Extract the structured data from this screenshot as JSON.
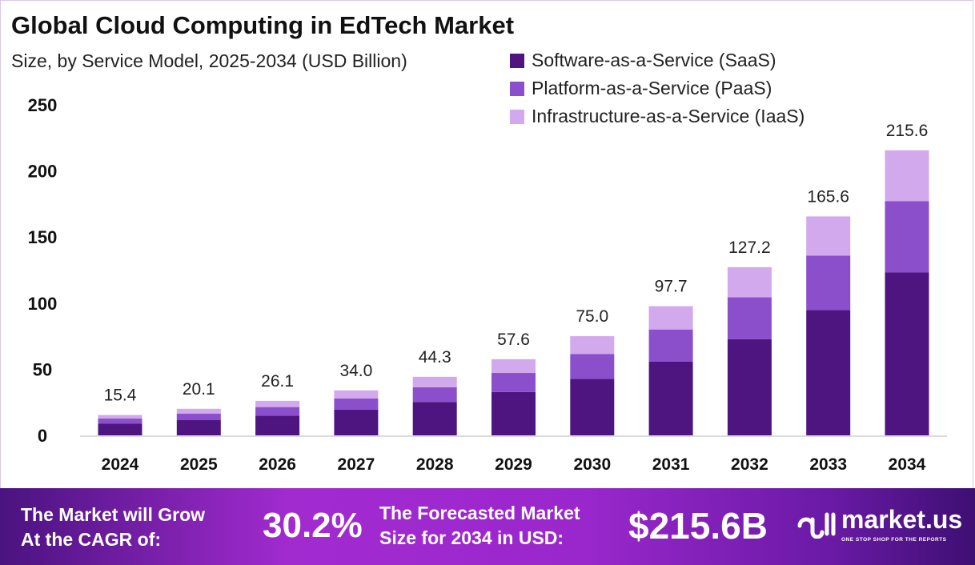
{
  "chart_data": {
    "type": "bar",
    "stacked": true,
    "title": "Global Cloud Computing in EdTech Market",
    "subtitle": "Size, by Service Model, 2025-2034 (USD Billion)",
    "categories": [
      "2024",
      "2025",
      "2026",
      "2027",
      "2028",
      "2029",
      "2030",
      "2031",
      "2032",
      "2033",
      "2034"
    ],
    "series": [
      {
        "name": "Software-as-a-Service (SaaS)",
        "color": "#4e1580",
        "values": [
          8.8,
          11.5,
          14.9,
          19.4,
          25.3,
          32.8,
          42.8,
          55.7,
          72.8,
          94.7,
          123.2
        ]
      },
      {
        "name": "Platform-as-a-Service (PaaS)",
        "color": "#8b4fcc",
        "values": [
          3.9,
          5.0,
          6.5,
          8.5,
          11.1,
          14.4,
          18.8,
          24.4,
          31.6,
          41.3,
          54.0
        ]
      },
      {
        "name": "Infrastructure-as-a-Service (IaaS)",
        "color": "#d2a9ec",
        "values": [
          2.7,
          3.6,
          4.7,
          6.1,
          7.9,
          10.4,
          13.4,
          17.6,
          22.8,
          29.6,
          38.4
        ]
      }
    ],
    "totals": [
      "15.4",
      "20.1",
      "26.1",
      "34.0",
      "44.3",
      "57.6",
      "75.0",
      "97.7",
      "127.2",
      "165.6",
      "215.6"
    ],
    "yticks": [
      "0",
      "50",
      "100",
      "150",
      "200",
      "250"
    ],
    "ylim": [
      0,
      250
    ],
    "grid": false,
    "legend": "top-right"
  },
  "footer": {
    "cagr_label_1": "The Market will Grow",
    "cagr_label_2": "At the CAGR of:",
    "cagr_value": "30.2%",
    "forecast_label_1": "The Forecasted Market",
    "forecast_label_2": "Size for 2034 in USD:",
    "forecast_value": "$215.6B",
    "logo_text": "market.us",
    "logo_tagline": "ONE STOP SHOP FOR THE REPORTS"
  }
}
